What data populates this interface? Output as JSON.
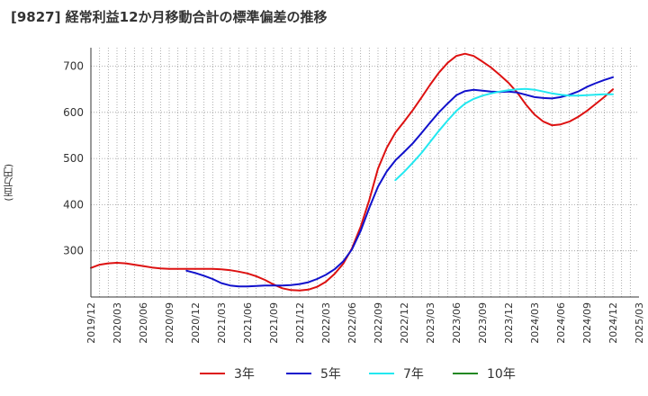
{
  "chart_data": {
    "type": "line",
    "title": "[9827]  経常利益12か月移動合計の標準偏差の推移",
    "ylabel": "(百万円)",
    "xlabel": "",
    "ylim": [
      200,
      740
    ],
    "yticks": [
      300,
      400,
      500,
      600,
      700
    ],
    "grid": true,
    "legend_position": "bottom",
    "x_ticks": [
      "2019/12",
      "2020/03",
      "2020/06",
      "2020/09",
      "2020/12",
      "2021/03",
      "2021/06",
      "2021/09",
      "2021/12",
      "2022/03",
      "2022/06",
      "2022/09",
      "2022/12",
      "2023/03",
      "2023/06",
      "2023/09",
      "2023/12",
      "2024/03",
      "2024/06",
      "2024/09",
      "2024/12",
      "2025/03"
    ],
    "series": [
      {
        "name": "3年",
        "color": "#dd1111",
        "points": [
          [
            "2019/12",
            263
          ],
          [
            "2020/01",
            270
          ],
          [
            "2020/02",
            273
          ],
          [
            "2020/03",
            274
          ],
          [
            "2020/04",
            273
          ],
          [
            "2020/05",
            270
          ],
          [
            "2020/06",
            267
          ],
          [
            "2020/07",
            264
          ],
          [
            "2020/08",
            262
          ],
          [
            "2020/09",
            261
          ],
          [
            "2020/10",
            261
          ],
          [
            "2020/11",
            261
          ],
          [
            "2020/12",
            261
          ],
          [
            "2021/01",
            261
          ],
          [
            "2021/02",
            261
          ],
          [
            "2021/03",
            260
          ],
          [
            "2021/04",
            258
          ],
          [
            "2021/05",
            255
          ],
          [
            "2021/06",
            251
          ],
          [
            "2021/07",
            245
          ],
          [
            "2021/08",
            237
          ],
          [
            "2021/09",
            227
          ],
          [
            "2021/10",
            219
          ],
          [
            "2021/11",
            215
          ],
          [
            "2021/12",
            214
          ],
          [
            "2022/01",
            216
          ],
          [
            "2022/02",
            222
          ],
          [
            "2022/03",
            233
          ],
          [
            "2022/04",
            250
          ],
          [
            "2022/05",
            272
          ],
          [
            "2022/06",
            305
          ],
          [
            "2022/07",
            352
          ],
          [
            "2022/08",
            410
          ],
          [
            "2022/09",
            478
          ],
          [
            "2022/10",
            523
          ],
          [
            "2022/11",
            556
          ],
          [
            "2022/12",
            580
          ],
          [
            "2023/01",
            605
          ],
          [
            "2023/02",
            632
          ],
          [
            "2023/03",
            660
          ],
          [
            "2023/04",
            686
          ],
          [
            "2023/05",
            707
          ],
          [
            "2023/06",
            722
          ],
          [
            "2023/07",
            727
          ],
          [
            "2023/08",
            722
          ],
          [
            "2023/09",
            710
          ],
          [
            "2023/10",
            697
          ],
          [
            "2023/11",
            681
          ],
          [
            "2023/12",
            664
          ],
          [
            "2024/01",
            643
          ],
          [
            "2024/02",
            617
          ],
          [
            "2024/03",
            595
          ],
          [
            "2024/04",
            580
          ],
          [
            "2024/05",
            572
          ],
          [
            "2024/06",
            574
          ],
          [
            "2024/07",
            580
          ],
          [
            "2024/08",
            590
          ],
          [
            "2024/09",
            603
          ],
          [
            "2024/10",
            618
          ],
          [
            "2024/11",
            633
          ],
          [
            "2024/12",
            650
          ]
        ]
      },
      {
        "name": "5年",
        "color": "#1111cc",
        "points": [
          [
            "2020/11",
            257
          ],
          [
            "2020/12",
            252
          ],
          [
            "2021/01",
            246
          ],
          [
            "2021/02",
            239
          ],
          [
            "2021/03",
            230
          ],
          [
            "2021/04",
            225
          ],
          [
            "2021/05",
            223
          ],
          [
            "2021/06",
            223
          ],
          [
            "2021/07",
            224
          ],
          [
            "2021/08",
            225
          ],
          [
            "2021/09",
            225
          ],
          [
            "2021/10",
            225
          ],
          [
            "2021/11",
            226
          ],
          [
            "2021/12",
            228
          ],
          [
            "2022/01",
            232
          ],
          [
            "2022/02",
            239
          ],
          [
            "2022/03",
            248
          ],
          [
            "2022/04",
            260
          ],
          [
            "2022/05",
            277
          ],
          [
            "2022/06",
            303
          ],
          [
            "2022/07",
            343
          ],
          [
            "2022/08",
            393
          ],
          [
            "2022/09",
            439
          ],
          [
            "2022/10",
            472
          ],
          [
            "2022/11",
            496
          ],
          [
            "2022/12",
            514
          ],
          [
            "2023/01",
            533
          ],
          [
            "2023/02",
            555
          ],
          [
            "2023/03",
            578
          ],
          [
            "2023/04",
            600
          ],
          [
            "2023/05",
            619
          ],
          [
            "2023/06",
            637
          ],
          [
            "2023/07",
            646
          ],
          [
            "2023/08",
            649
          ],
          [
            "2023/09",
            647
          ],
          [
            "2023/10",
            645
          ],
          [
            "2023/11",
            644
          ],
          [
            "2023/12",
            645
          ],
          [
            "2024/01",
            643
          ],
          [
            "2024/02",
            638
          ],
          [
            "2024/03",
            633
          ],
          [
            "2024/04",
            631
          ],
          [
            "2024/05",
            630
          ],
          [
            "2024/06",
            633
          ],
          [
            "2024/07",
            638
          ],
          [
            "2024/08",
            645
          ],
          [
            "2024/09",
            655
          ],
          [
            "2024/10",
            663
          ],
          [
            "2024/11",
            670
          ],
          [
            "2024/12",
            676
          ]
        ]
      },
      {
        "name": "7年",
        "color": "#22e8f0",
        "points": [
          [
            "2022/11",
            453
          ],
          [
            "2022/12",
            471
          ],
          [
            "2023/01",
            491
          ],
          [
            "2023/02",
            512
          ],
          [
            "2023/03",
            536
          ],
          [
            "2023/04",
            560
          ],
          [
            "2023/05",
            582
          ],
          [
            "2023/06",
            603
          ],
          [
            "2023/07",
            619
          ],
          [
            "2023/08",
            629
          ],
          [
            "2023/09",
            636
          ],
          [
            "2023/10",
            641
          ],
          [
            "2023/11",
            645
          ],
          [
            "2023/12",
            648
          ],
          [
            "2024/01",
            650
          ],
          [
            "2024/02",
            651
          ],
          [
            "2024/03",
            649
          ],
          [
            "2024/04",
            645
          ],
          [
            "2024/05",
            641
          ],
          [
            "2024/06",
            638
          ],
          [
            "2024/07",
            636
          ],
          [
            "2024/08",
            636
          ],
          [
            "2024/09",
            637
          ],
          [
            "2024/10",
            638
          ],
          [
            "2024/11",
            639
          ],
          [
            "2024/12",
            639
          ]
        ]
      },
      {
        "name": "10年",
        "color": "#228822",
        "points": []
      }
    ]
  }
}
